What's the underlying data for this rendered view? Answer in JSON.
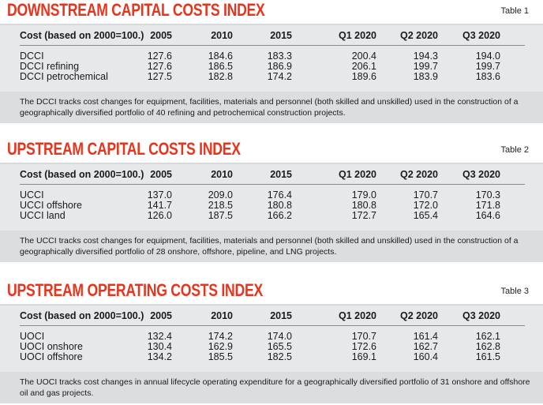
{
  "tables": [
    {
      "title": "DOWNSTREAM CAPITAL COSTS INDEX",
      "tag": "Table 1",
      "headers": [
        "Cost (based on 2000=100.)",
        "2005",
        "2010",
        "2015",
        "Q1 2020",
        "Q2 2020",
        "Q3 2020"
      ],
      "rows": [
        [
          "DCCI",
          "127.6",
          "184.6",
          "183.3",
          "200.4",
          "194.3",
          "194.0"
        ],
        [
          "DCCI refining",
          "127.6",
          "186.5",
          "186.9",
          "206.1",
          "199.7",
          "199.7"
        ],
        [
          "DCCI petrochemical",
          "127.5",
          "182.8",
          "174.2",
          "189.6",
          "183.9",
          "183.6"
        ]
      ],
      "note": "The DCCI tracks cost changes for equipment, facilities, materials and personnel (both skilled and unskilled) used in the construction of a geographically diversified portfolio of 40 refining and petrochemical construction projects."
    },
    {
      "title": "UPSTREAM CAPITAL COSTS INDEX",
      "tag": "Table 2",
      "headers": [
        "Cost (based on 2000=100.)",
        "2005",
        "2010",
        "2015",
        "Q1 2020",
        "Q2 2020",
        "Q3 2020"
      ],
      "rows": [
        [
          "UCCI",
          "137.0",
          "209.0",
          "176.4",
          "179.0",
          "170.7",
          "170.3"
        ],
        [
          "UCCI offshore",
          "141.7",
          "218.5",
          "180.8",
          "180.8",
          "172.0",
          "171.8"
        ],
        [
          "UCCI land",
          "126.0",
          "187.5",
          "166.2",
          "172.7",
          "165.4",
          "164.6"
        ]
      ],
      "note": "The UCCI tracks cost changes for equipment, facilities, materials and personnel (both skilled and unskilled) used in the construction of a geographically diversified portfolio of 28 onshore, offshore, pipeline, and LNG projects."
    },
    {
      "title": "UPSTREAM OPERATING COSTS INDEX",
      "tag": "Table 3",
      "headers": [
        "Cost (based on 2000=100.)",
        "2005",
        "2010",
        "2015",
        "Q1 2020",
        "Q2 2020",
        "Q3 2020"
      ],
      "rows": [
        [
          "UOCI",
          "132.4",
          "174.2",
          "174.0",
          "170.7",
          "161.4",
          "162.1"
        ],
        [
          "UOCI onshore",
          "130.4",
          "162.9",
          "165.5",
          "172.6",
          "162.7",
          "162.8"
        ],
        [
          "UOCI offshore",
          "134.2",
          "185.5",
          "182.5",
          "169.1",
          "160.4",
          "161.5"
        ]
      ],
      "note": "The UOCI tracks cost changes in annual lifecycle operating expenditure for a geographically diversified portfolio of 31 onshore and offshore oil and gas projects."
    }
  ]
}
